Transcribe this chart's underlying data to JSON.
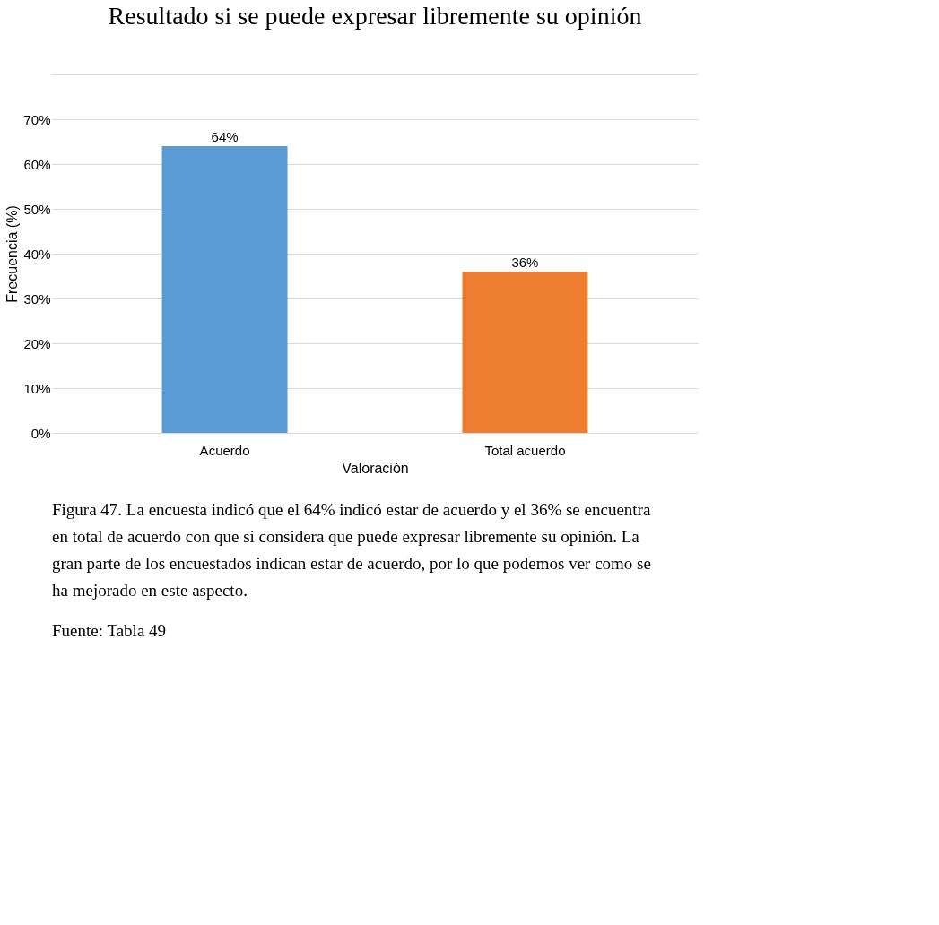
{
  "chart_data": {
    "type": "bar",
    "title": "Resultado si se puede expresar libremente su opinión",
    "xlabel": "Valoración",
    "ylabel": "Frecuencia (%)",
    "categories": [
      "Acuerdo",
      "Total acuerdo"
    ],
    "values": [
      64,
      36
    ],
    "colors": [
      "#5b9bd5",
      "#ed7d31"
    ],
    "value_labels": [
      "64%",
      "36%"
    ],
    "ylim": [
      0,
      80
    ],
    "yticks": [
      {
        "value": 0,
        "label": "0%"
      },
      {
        "value": 10,
        "label": "10%"
      },
      {
        "value": 20,
        "label": "20%"
      },
      {
        "value": 30,
        "label": "30%"
      },
      {
        "value": 40,
        "label": "40%"
      },
      {
        "value": 50,
        "label": "50%"
      },
      {
        "value": 60,
        "label": "60%"
      },
      {
        "value": 70,
        "label": "70%"
      },
      {
        "value": 80,
        "label": null
      }
    ],
    "grid": "y",
    "annotations": [
      "Figura 47. La encuesta indicó que el 64% indicó estar de acuerdo y el 36% se encuentra en total de acuerdo con que si considera que puede expresar libremente su opinión. La gran parte de los encuestados indican estar de acuerdo, por lo que podemos ver como se ha mejorado en este aspecto.",
      "Fuente: Tabla 49"
    ]
  }
}
